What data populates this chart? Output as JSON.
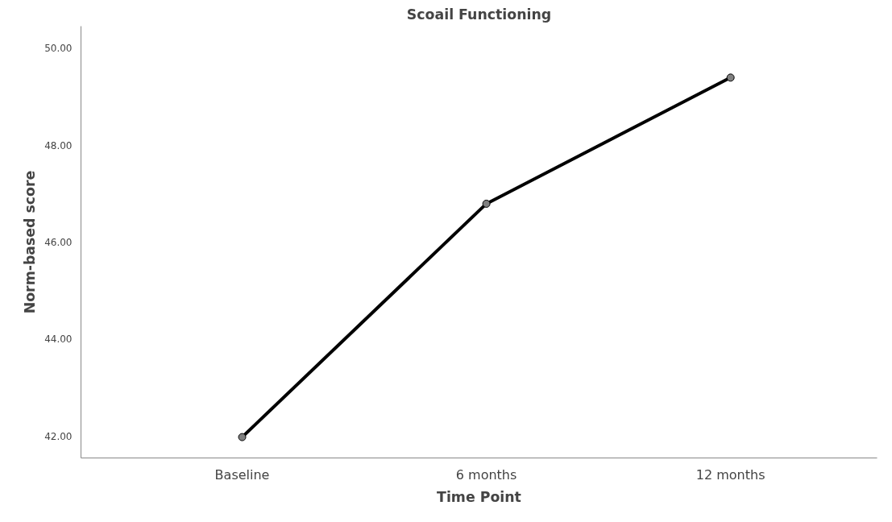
{
  "chart_data": {
    "type": "line",
    "title": "Scoail Functioning",
    "xlabel": "Time Point",
    "ylabel": "Norm-based score",
    "categories": [
      "Baseline",
      "6 months",
      "12 months"
    ],
    "series": [
      {
        "color": "#000000",
        "values": [
          41.98,
          46.79,
          49.39
        ]
      }
    ],
    "ylim": [
      41.55,
      50.45
    ],
    "yticks": [
      {
        "value": 42,
        "label": "42.00"
      },
      {
        "value": 44,
        "label": "44.00"
      },
      {
        "value": 46,
        "label": "46.00"
      },
      {
        "value": 48,
        "label": "48.00"
      },
      {
        "value": 50,
        "label": "50.00"
      }
    ],
    "grid": false,
    "marker": "circle",
    "line_style": "solid"
  }
}
